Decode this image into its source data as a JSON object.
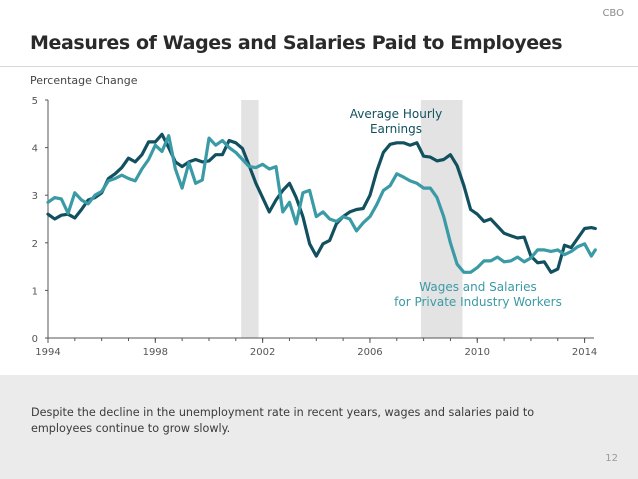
{
  "header": {
    "org": "CBO",
    "title": "Measures of Wages and Salaries Paid to Employees"
  },
  "chart_data": {
    "type": "line",
    "title": "Measures of Wages and Salaries Paid to Employees",
    "ylabel": "Percentage Change",
    "xlabel": "",
    "xlim": [
      1994,
      2014.5
    ],
    "ylim": [
      0,
      5
    ],
    "x_ticks": [
      1994,
      1998,
      2002,
      2006,
      2010,
      2014
    ],
    "y_ticks": [
      0,
      1,
      2,
      3,
      4,
      5
    ],
    "recessions": [
      {
        "start": 2001.2,
        "end": 2001.85
      },
      {
        "start": 2007.9,
        "end": 2009.45
      }
    ],
    "series": [
      {
        "name": "Average Hourly Earnings",
        "label_lines": [
          "Average Hourly",
          "Earnings"
        ],
        "color": "#12505f",
        "points": [
          [
            1994,
            2.6
          ],
          [
            1994.25,
            2.5
          ],
          [
            1994.5,
            2.58
          ],
          [
            1994.75,
            2.6
          ],
          [
            1995,
            2.52
          ],
          [
            1995.25,
            2.7
          ],
          [
            1995.5,
            2.9
          ],
          [
            1995.75,
            2.95
          ],
          [
            1996,
            3.05
          ],
          [
            1996.25,
            3.35
          ],
          [
            1996.5,
            3.45
          ],
          [
            1996.75,
            3.58
          ],
          [
            1997,
            3.78
          ],
          [
            1997.25,
            3.7
          ],
          [
            1997.5,
            3.85
          ],
          [
            1997.75,
            4.12
          ],
          [
            1998,
            4.12
          ],
          [
            1998.25,
            4.28
          ],
          [
            1998.5,
            4.0
          ],
          [
            1998.75,
            3.7
          ],
          [
            1999,
            3.6
          ],
          [
            1999.25,
            3.7
          ],
          [
            1999.5,
            3.75
          ],
          [
            1999.75,
            3.7
          ],
          [
            2000,
            3.72
          ],
          [
            2000.25,
            3.85
          ],
          [
            2000.5,
            3.85
          ],
          [
            2000.75,
            4.15
          ],
          [
            2001,
            4.1
          ],
          [
            2001.25,
            3.98
          ],
          [
            2001.5,
            3.62
          ],
          [
            2001.75,
            3.25
          ],
          [
            2002,
            2.95
          ],
          [
            2002.25,
            2.65
          ],
          [
            2002.5,
            2.9
          ],
          [
            2002.75,
            3.1
          ],
          [
            2003,
            3.25
          ],
          [
            2003.25,
            2.95
          ],
          [
            2003.5,
            2.55
          ],
          [
            2003.75,
            1.98
          ],
          [
            2004,
            1.72
          ],
          [
            2004.25,
            1.98
          ],
          [
            2004.5,
            2.05
          ],
          [
            2004.75,
            2.4
          ],
          [
            2005,
            2.55
          ],
          [
            2005.25,
            2.65
          ],
          [
            2005.5,
            2.7
          ],
          [
            2005.75,
            2.72
          ],
          [
            2006,
            3.0
          ],
          [
            2006.25,
            3.5
          ],
          [
            2006.5,
            3.9
          ],
          [
            2006.75,
            4.07
          ],
          [
            2007,
            4.1
          ],
          [
            2007.25,
            4.1
          ],
          [
            2007.5,
            4.05
          ],
          [
            2007.75,
            4.1
          ],
          [
            2008,
            3.82
          ],
          [
            2008.25,
            3.8
          ],
          [
            2008.5,
            3.72
          ],
          [
            2008.75,
            3.75
          ],
          [
            2009,
            3.85
          ],
          [
            2009.25,
            3.62
          ],
          [
            2009.5,
            3.2
          ],
          [
            2009.75,
            2.7
          ],
          [
            2010,
            2.6
          ],
          [
            2010.25,
            2.45
          ],
          [
            2010.5,
            2.5
          ],
          [
            2010.75,
            2.35
          ],
          [
            2011,
            2.2
          ],
          [
            2011.25,
            2.15
          ],
          [
            2011.5,
            2.1
          ],
          [
            2011.75,
            2.12
          ],
          [
            2012,
            1.72
          ],
          [
            2012.25,
            1.58
          ],
          [
            2012.5,
            1.6
          ],
          [
            2012.75,
            1.38
          ],
          [
            2013,
            1.45
          ],
          [
            2013.25,
            1.95
          ],
          [
            2013.5,
            1.9
          ],
          [
            2013.75,
            2.1
          ],
          [
            2014,
            2.3
          ],
          [
            2014.25,
            2.32
          ],
          [
            2014.4,
            2.3
          ]
        ]
      },
      {
        "name": "Wages and Salaries for Private Industry Workers",
        "label_lines": [
          "Wages and Salaries",
          "for Private Industry Workers"
        ],
        "color": "#3a9aa5",
        "points": [
          [
            1994,
            2.85
          ],
          [
            1994.25,
            2.95
          ],
          [
            1994.5,
            2.92
          ],
          [
            1994.75,
            2.62
          ],
          [
            1995,
            3.05
          ],
          [
            1995.25,
            2.9
          ],
          [
            1995.5,
            2.82
          ],
          [
            1995.75,
            3.0
          ],
          [
            1996,
            3.08
          ],
          [
            1996.25,
            3.3
          ],
          [
            1996.5,
            3.35
          ],
          [
            1996.75,
            3.42
          ],
          [
            1997,
            3.35
          ],
          [
            1997.25,
            3.3
          ],
          [
            1997.5,
            3.55
          ],
          [
            1997.75,
            3.75
          ],
          [
            1998,
            4.05
          ],
          [
            1998.25,
            3.92
          ],
          [
            1998.5,
            4.25
          ],
          [
            1998.75,
            3.55
          ],
          [
            1999,
            3.15
          ],
          [
            1999.25,
            3.68
          ],
          [
            1999.5,
            3.25
          ],
          [
            1999.75,
            3.32
          ],
          [
            2000,
            4.2
          ],
          [
            2000.25,
            4.05
          ],
          [
            2000.5,
            4.15
          ],
          [
            2000.75,
            4.0
          ],
          [
            2001,
            3.9
          ],
          [
            2001.25,
            3.75
          ],
          [
            2001.5,
            3.6
          ],
          [
            2001.75,
            3.58
          ],
          [
            2002,
            3.65
          ],
          [
            2002.25,
            3.55
          ],
          [
            2002.5,
            3.6
          ],
          [
            2002.75,
            2.65
          ],
          [
            2003,
            2.85
          ],
          [
            2003.25,
            2.4
          ],
          [
            2003.5,
            3.05
          ],
          [
            2003.75,
            3.1
          ],
          [
            2004,
            2.55
          ],
          [
            2004.25,
            2.65
          ],
          [
            2004.5,
            2.5
          ],
          [
            2004.75,
            2.45
          ],
          [
            2005,
            2.55
          ],
          [
            2005.25,
            2.5
          ],
          [
            2005.5,
            2.25
          ],
          [
            2005.75,
            2.42
          ],
          [
            2006,
            2.55
          ],
          [
            2006.25,
            2.8
          ],
          [
            2006.5,
            3.1
          ],
          [
            2006.75,
            3.2
          ],
          [
            2007,
            3.45
          ],
          [
            2007.25,
            3.38
          ],
          [
            2007.5,
            3.3
          ],
          [
            2007.75,
            3.25
          ],
          [
            2008,
            3.15
          ],
          [
            2008.25,
            3.15
          ],
          [
            2008.5,
            2.95
          ],
          [
            2008.75,
            2.55
          ],
          [
            2009,
            2.0
          ],
          [
            2009.25,
            1.55
          ],
          [
            2009.5,
            1.38
          ],
          [
            2009.75,
            1.38
          ],
          [
            2010,
            1.48
          ],
          [
            2010.25,
            1.62
          ],
          [
            2010.5,
            1.62
          ],
          [
            2010.75,
            1.7
          ],
          [
            2011,
            1.6
          ],
          [
            2011.25,
            1.62
          ],
          [
            2011.5,
            1.7
          ],
          [
            2011.75,
            1.6
          ],
          [
            2012,
            1.68
          ],
          [
            2012.25,
            1.85
          ],
          [
            2012.5,
            1.85
          ],
          [
            2012.75,
            1.82
          ],
          [
            2013,
            1.85
          ],
          [
            2013.25,
            1.75
          ],
          [
            2013.5,
            1.82
          ],
          [
            2013.75,
            1.92
          ],
          [
            2014,
            1.98
          ],
          [
            2014.25,
            1.72
          ],
          [
            2014.4,
            1.85
          ]
        ]
      }
    ]
  },
  "footer": {
    "note": "Despite the decline in the unemployment rate in recent years, wages and salaries paid to employees continue to grow slowly.",
    "page_number": "12"
  }
}
